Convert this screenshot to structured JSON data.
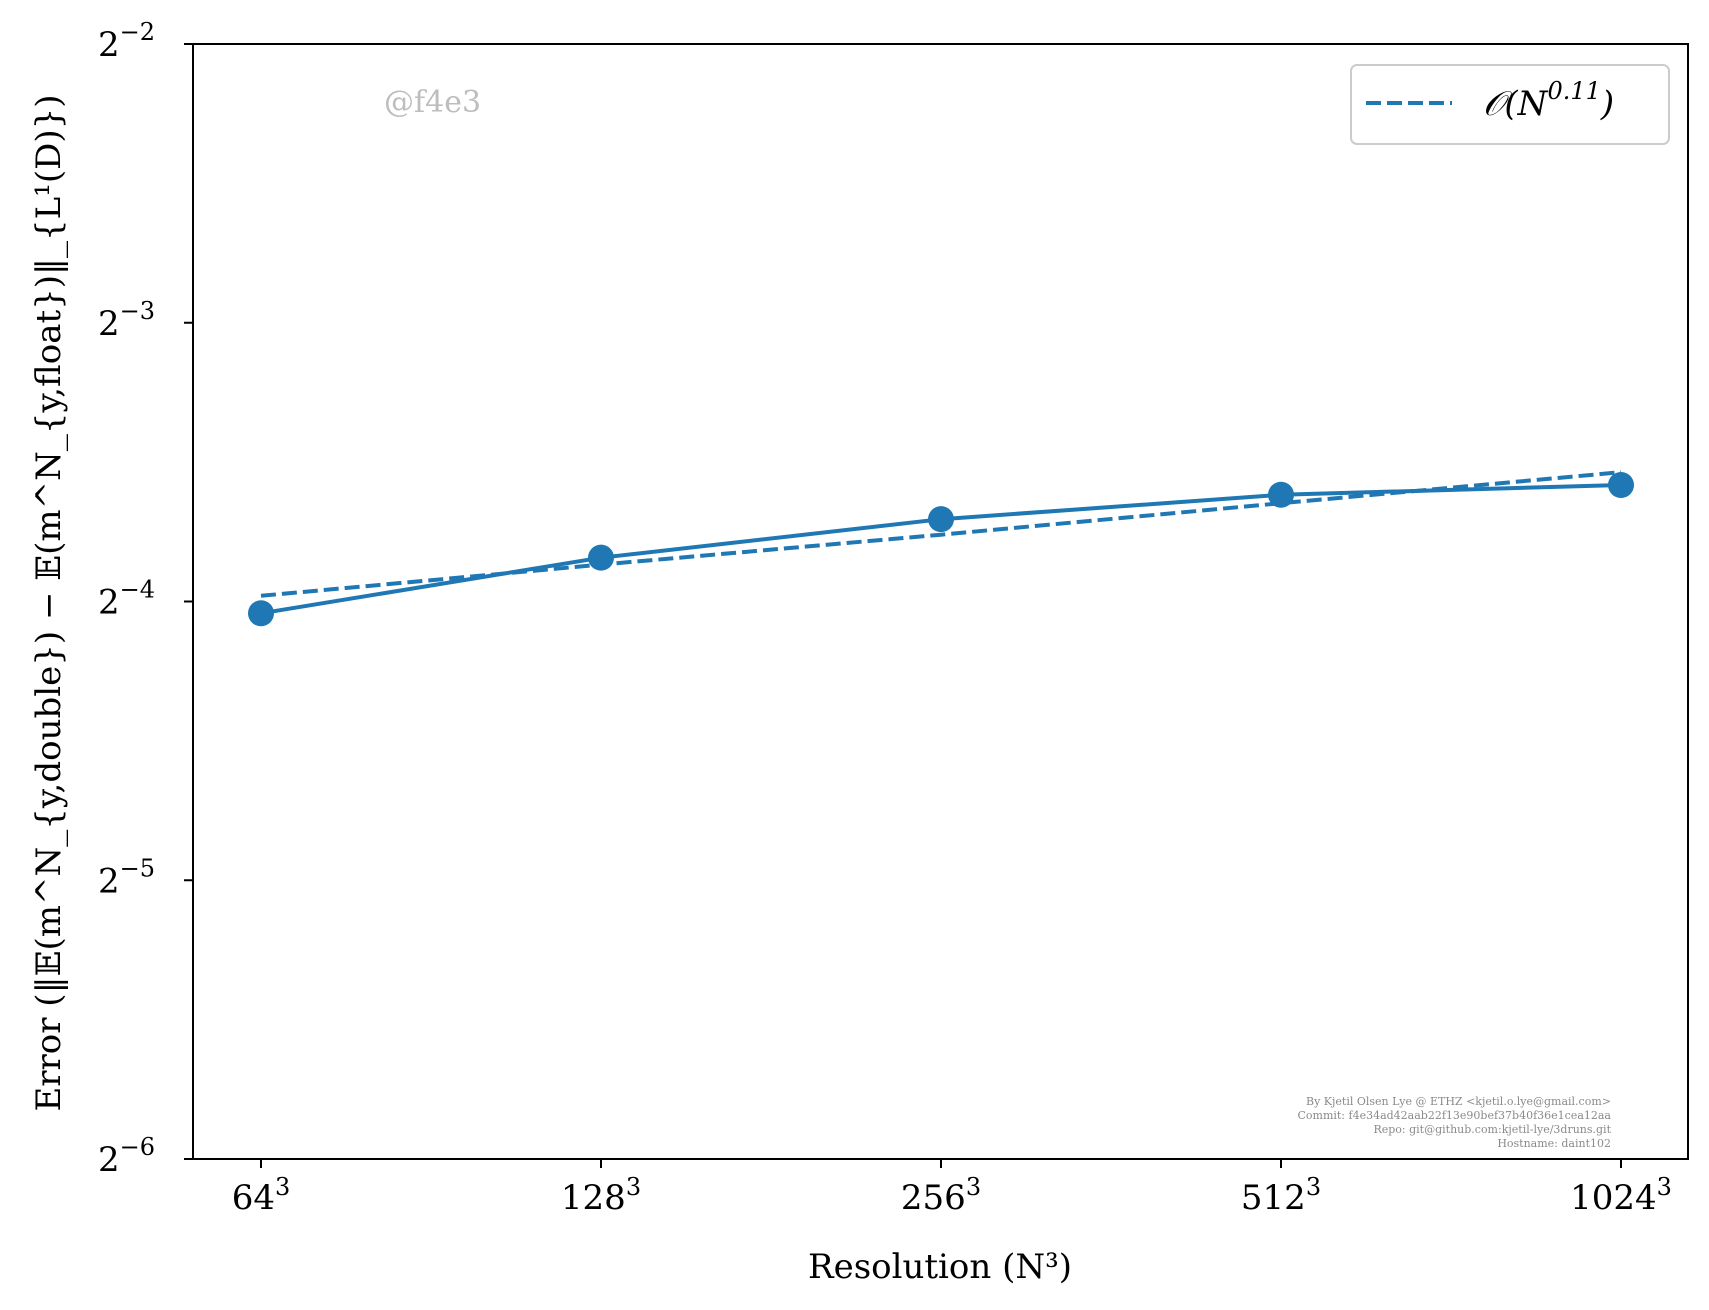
{
  "chart_data": {
    "type": "line",
    "x_scale": "log2",
    "y_scale": "log2",
    "x_categories": [
      "64",
      "128",
      "256",
      "512",
      "1024"
    ],
    "x_superscript": "3",
    "x_values": [
      64,
      128,
      256,
      512,
      1024
    ],
    "y_tick_base": "2",
    "y_tick_exponents": [
      "−2",
      "−3",
      "−4",
      "−5",
      "−6"
    ],
    "ylim_log2": [
      -6,
      -2
    ],
    "xlabel": "Resolution (N³)",
    "ylabel": "Error (‖𝔼(m^N_{y,double}) − 𝔼(m^N_{y,float})‖_{L¹(D)})",
    "series": [
      {
        "name": "",
        "style": "solid-markers",
        "color": "#1f77b4",
        "values": [
          0.0607,
          0.0697,
          0.0767,
          0.0815,
          0.0835
        ]
      },
      {
        "name": "𝒪(N^0.11)",
        "style": "dashed",
        "color": "#1f77b4",
        "values": [
          0.0634,
          0.0685,
          0.0738,
          0.0798,
          0.0862
        ]
      }
    ],
    "legend": {
      "position": "top-right",
      "label_base": "𝒪(N",
      "label_exp": "0.11",
      "label_close": ")"
    },
    "grid": false
  },
  "watermark": "@f4e3",
  "footer_lines": [
    "By Kjetil Olsen Lye @ ETHZ <kjetil.o.lye@gmail.com>",
    "Commit: f4e34ad42aab22f13e90bef37b40f36e1cea12aa",
    "Repo: git@github.com:kjetil-lye/3druns.git",
    "Hostname: daint102"
  ]
}
